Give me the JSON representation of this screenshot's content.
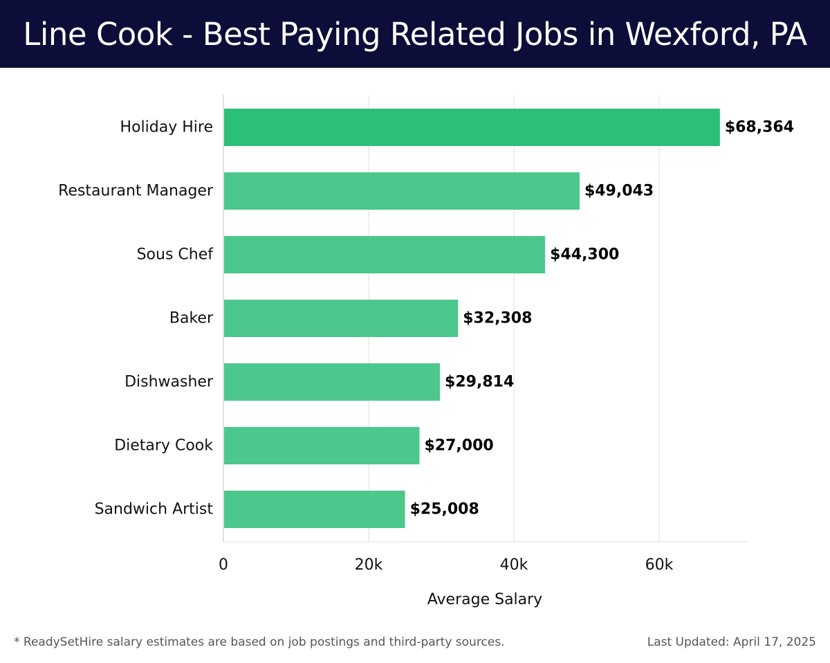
{
  "header": {
    "title": "Line Cook - Best Paying Related Jobs in Wexford, PA"
  },
  "footer": {
    "note": "* ReadySetHire salary estimates are based on job postings and third-party sources.",
    "updated": "Last Updated: April 17, 2025"
  },
  "colors": {
    "header_bg": "#0c0d38",
    "bar_top": "#2bbf77",
    "bar": "#4cc88d"
  },
  "chart_data": {
    "type": "bar",
    "orientation": "horizontal",
    "categories": [
      "Holiday Hire",
      "Restaurant Manager",
      "Sous Chef",
      "Baker",
      "Dishwasher",
      "Dietary Cook",
      "Sandwich Artist"
    ],
    "values": [
      68364,
      49043,
      44300,
      32308,
      29814,
      27000,
      25008
    ],
    "value_labels": [
      "$68,364",
      "$49,043",
      "$44,300",
      "$32,308",
      "$29,814",
      "$27,000",
      "$25,008"
    ],
    "xlabel": "Average Salary",
    "ylabel": "",
    "xlim": [
      0,
      72000
    ],
    "xticks": [
      0,
      20000,
      40000,
      60000
    ],
    "xtick_labels": [
      "0",
      "20k",
      "40k",
      "60k"
    ],
    "grid": "vertical"
  }
}
